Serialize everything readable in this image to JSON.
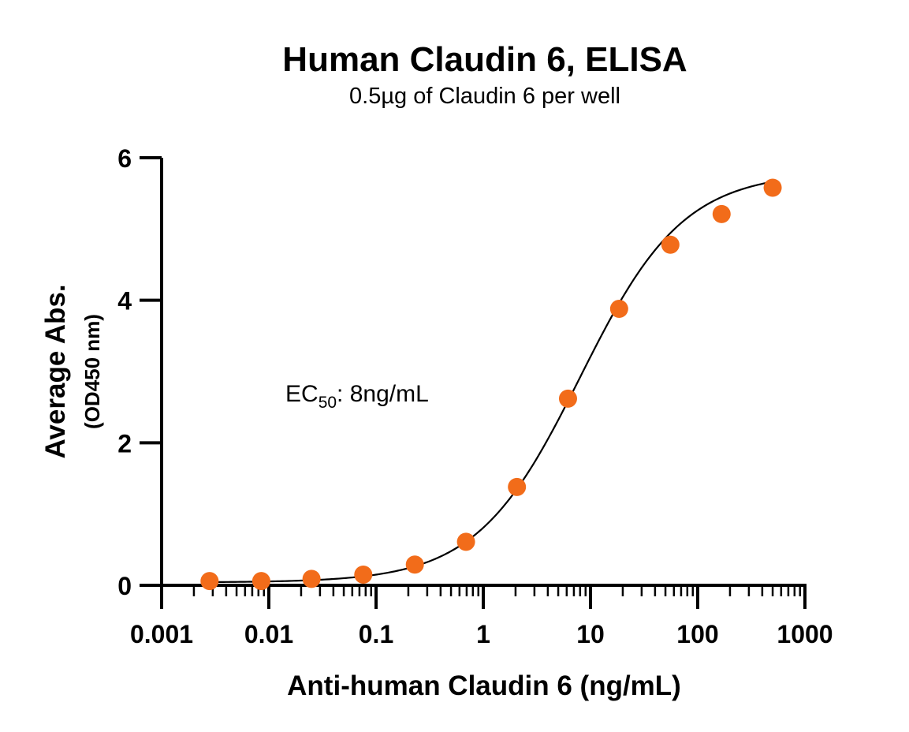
{
  "chart_data": {
    "type": "scatter",
    "title": "Human Claudin 6, ELISA",
    "subtitle": "0.5µg of Claudin 6 per well",
    "xlabel": "Anti-human Claudin 6 (ng/mL)",
    "ylabel": "Average Abs.",
    "ylabel_sub": "(OD450 nm)",
    "x_scale": "log",
    "xlim": [
      0.001,
      1000
    ],
    "ylim": [
      0,
      6
    ],
    "x_ticks": [
      0.001,
      0.01,
      0.1,
      1,
      10,
      100,
      1000
    ],
    "x_tick_labels": [
      "0.001",
      "0.01",
      "0.1",
      "1",
      "10",
      "100",
      "1000"
    ],
    "y_ticks": [
      0,
      2,
      4,
      6
    ],
    "y_tick_labels": [
      "0",
      "2",
      "4",
      "6"
    ],
    "grid": false,
    "legend": "none",
    "marker_color": "#f26c1a",
    "fit_color": "#000000",
    "annotation": {
      "prefix": "EC",
      "subscript": "50",
      "suffix": ": 8ng/mL"
    },
    "series": [
      {
        "x": [
          0.0028,
          0.0085,
          0.025,
          0.076,
          0.23,
          0.69,
          2.06,
          6.17,
          18.5,
          55.6,
          167,
          500
        ],
        "y": [
          0.06,
          0.06,
          0.09,
          0.15,
          0.29,
          0.61,
          1.38,
          2.62,
          3.88,
          4.78,
          5.21,
          5.58
        ]
      }
    ],
    "fit": {
      "model": "4PL",
      "bottom": 0.04,
      "top": 5.8,
      "ec50": 8,
      "hill": 0.9
    }
  }
}
